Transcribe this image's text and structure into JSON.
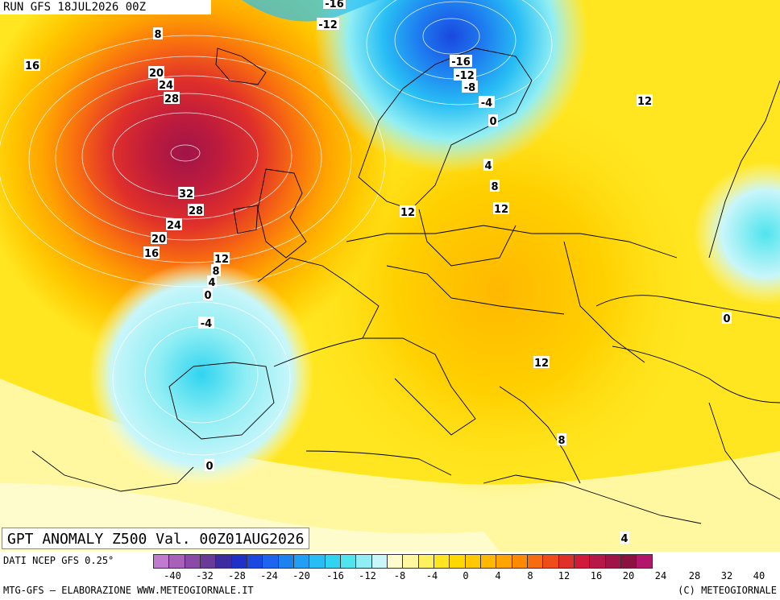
{
  "header": {
    "run": "RUN GFS 18JUL2026 00Z"
  },
  "title": "GPT ANOMALY Z500 Val. 00Z01AUG2026",
  "footer": {
    "source": "DATI NCEP GFS 0.25°",
    "credit": "MTG-GFS — ELABORAZIONE WWW.METEOGIORNALE.IT",
    "copyright": "(C) METEOGIORNALE"
  },
  "colorbar": {
    "ticks": [
      "-40",
      "-32",
      "-28",
      "-24",
      "-20",
      "-16",
      "-12",
      "-8",
      "-4",
      "0",
      "4",
      "8",
      "12",
      "16",
      "20",
      "24",
      "28",
      "32",
      "40"
    ],
    "colors": [
      "#c07ad0",
      "#a860b8",
      "#8c4aa8",
      "#6a3a98",
      "#3c2ca0",
      "#1e30c8",
      "#1a48e0",
      "#1e64ee",
      "#1c82f0",
      "#20a0f4",
      "#28bef4",
      "#30d4f0",
      "#50e4ee",
      "#90eef4",
      "#c8f6fa",
      "#fefccc",
      "#fff8a0",
      "#fff060",
      "#ffe620",
      "#ffd800",
      "#ffc800",
      "#ffb800",
      "#ffa400",
      "#ff8a00",
      "#f86c10",
      "#ee4c18",
      "#e0302a",
      "#d01c3a",
      "#b81848",
      "#a01448",
      "#8c1040",
      "#b4156c"
    ]
  },
  "contour_labels": [
    {
      "text": "-16"
    },
    {
      "text": "-12"
    },
    {
      "text": "8"
    },
    {
      "text": "16"
    },
    {
      "text": "20"
    },
    {
      "text": "24"
    },
    {
      "text": "28"
    },
    {
      "text": "32"
    },
    {
      "text": "28"
    },
    {
      "text": "24"
    },
    {
      "text": "20"
    },
    {
      "text": "16"
    },
    {
      "text": "12"
    },
    {
      "text": "8"
    },
    {
      "text": "4"
    },
    {
      "text": "0"
    },
    {
      "text": "-4"
    },
    {
      "text": "0"
    },
    {
      "text": "-16"
    },
    {
      "text": "-12"
    },
    {
      "text": "-8"
    },
    {
      "text": "-4"
    },
    {
      "text": "0"
    },
    {
      "text": "12"
    },
    {
      "text": "4"
    },
    {
      "text": "8"
    },
    {
      "text": "12"
    },
    {
      "text": "12"
    },
    {
      "text": "12"
    },
    {
      "text": "0"
    },
    {
      "text": "8"
    },
    {
      "text": "4"
    }
  ]
}
